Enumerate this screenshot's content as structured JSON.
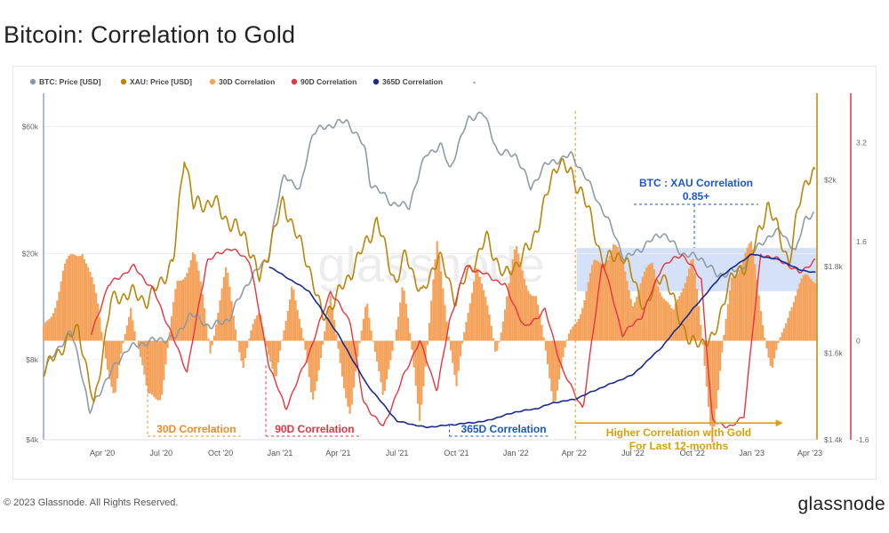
{
  "page": {
    "title": "Bitcoin: Correlation to Gold",
    "footer_copyright": "© 2023 Glassnode. All Rights Reserved.",
    "footer_logo": "glassnode",
    "watermark": "glassnode"
  },
  "colors": {
    "btc": "#8f9ba4",
    "xau": "#b8860b",
    "c30": "#f5a35c",
    "c90": "#e8343f",
    "c365": "#1a2a8c",
    "highlight": "#c7d6f7",
    "annotation_blue": "#1a56d6",
    "annotation_gold": "#d6a20a"
  },
  "chart_data": {
    "type": "line",
    "title": "Bitcoin: Correlation to Gold",
    "legend_position": "top-left",
    "legend": [
      {
        "label": "BTC: Price [USD]",
        "color": "#8f9ba4"
      },
      {
        "label": "XAU: Price [USD]",
        "color": "#b8860b"
      },
      {
        "label": "30D Correlation",
        "color": "#f5a35c"
      },
      {
        "label": "90D Correlation",
        "color": "#e8343f"
      },
      {
        "label": "365D Correlation",
        "color": "#1a2a8c"
      },
      {
        "label": "-",
        "color": "#ffffff"
      }
    ],
    "x_ticks": [
      "Apr '20",
      "Jul '20",
      "Oct '20",
      "Jan '21",
      "Apr '21",
      "Jul '21",
      "Oct '21",
      "Jan '22",
      "Apr '22",
      "Jul '22",
      "Oct '22",
      "Jan '23",
      "Apr '23"
    ],
    "axes": {
      "btc": {
        "scale": "log",
        "range": [
          4000,
          80000
        ],
        "ticks": [
          "$4k",
          "$8k",
          "$20k",
          "$60k"
        ],
        "tick_values": [
          4000,
          8000,
          20000,
          60000
        ]
      },
      "xau": {
        "scale": "linear",
        "range": [
          1400,
          2200
        ],
        "ticks": [
          "$1.4k",
          "$1.6k",
          "$1.8k",
          "$2k"
        ],
        "tick_values": [
          1400,
          1600,
          1800,
          2000
        ]
      },
      "corr": {
        "scale": "linear",
        "range": [
          -1.6,
          4.0
        ],
        "ticks": [
          "-1.6",
          "0",
          "1.6",
          "3.2"
        ],
        "tick_values": [
          -1.6,
          0,
          1.6,
          3.2
        ]
      }
    },
    "grid": true,
    "series": [
      {
        "name": "BTC: Price [USD]",
        "axis": "btc",
        "points": [
          [
            "2020-01-01",
            7200
          ],
          [
            "2020-02-12",
            10200
          ],
          [
            "2020-03-12",
            5000
          ],
          [
            "2020-04-10",
            6900
          ],
          [
            "2020-05-10",
            8800
          ],
          [
            "2020-06-15",
            9400
          ],
          [
            "2020-07-25",
            9700
          ],
          [
            "2020-08-15",
            11900
          ],
          [
            "2020-09-15",
            10600
          ],
          [
            "2020-10-15",
            11400
          ],
          [
            "2020-11-15",
            16000
          ],
          [
            "2020-12-15",
            19400
          ],
          [
            "2021-01-08",
            40000
          ],
          [
            "2021-02-01",
            34000
          ],
          [
            "2021-02-21",
            57000
          ],
          [
            "2021-03-13",
            60000
          ],
          [
            "2021-04-14",
            63000
          ],
          [
            "2021-05-12",
            50000
          ],
          [
            "2021-05-20",
            37000
          ],
          [
            "2021-06-22",
            31000
          ],
          [
            "2021-07-20",
            30000
          ],
          [
            "2021-08-15",
            47000
          ],
          [
            "2021-09-07",
            51000
          ],
          [
            "2021-09-21",
            41000
          ],
          [
            "2021-10-20",
            64000
          ],
          [
            "2021-11-10",
            68000
          ],
          [
            "2021-12-04",
            48000
          ],
          [
            "2022-01-01",
            47000
          ],
          [
            "2022-01-24",
            35000
          ],
          [
            "2022-02-15",
            43000
          ],
          [
            "2022-03-28",
            47000
          ],
          [
            "2022-05-09",
            31000
          ],
          [
            "2022-06-18",
            19000
          ],
          [
            "2022-07-15",
            21000
          ],
          [
            "2022-08-15",
            24000
          ],
          [
            "2022-09-15",
            20000
          ],
          [
            "2022-10-15",
            19200
          ],
          [
            "2022-11-09",
            16500
          ],
          [
            "2022-12-15",
            17500
          ],
          [
            "2023-01-20",
            22500
          ],
          [
            "2023-02-15",
            24500
          ],
          [
            "2023-03-10",
            20000
          ],
          [
            "2023-03-25",
            27500
          ],
          [
            "2023-04-08",
            28000
          ]
        ]
      },
      {
        "name": "XAU: Price [USD]",
        "axis": "xau",
        "points": [
          [
            "2020-01-01",
            1560
          ],
          [
            "2020-02-24",
            1660
          ],
          [
            "2020-03-19",
            1475
          ],
          [
            "2020-04-14",
            1720
          ],
          [
            "2020-05-15",
            1740
          ],
          [
            "2020-06-10",
            1720
          ],
          [
            "2020-07-20",
            1810
          ],
          [
            "2020-08-06",
            2065
          ],
          [
            "2020-08-20",
            1940
          ],
          [
            "2020-09-20",
            1950
          ],
          [
            "2020-10-15",
            1900
          ],
          [
            "2020-11-09",
            1870
          ],
          [
            "2020-11-30",
            1770
          ],
          [
            "2021-01-06",
            1950
          ],
          [
            "2021-02-15",
            1800
          ],
          [
            "2021-03-08",
            1680
          ],
          [
            "2021-04-15",
            1770
          ],
          [
            "2021-05-31",
            1905
          ],
          [
            "2021-06-29",
            1760
          ],
          [
            "2021-07-15",
            1830
          ],
          [
            "2021-08-09",
            1730
          ],
          [
            "2021-09-03",
            1830
          ],
          [
            "2021-09-29",
            1725
          ],
          [
            "2021-11-16",
            1865
          ],
          [
            "2021-12-15",
            1775
          ],
          [
            "2022-01-25",
            1850
          ],
          [
            "2022-03-08",
            2050
          ],
          [
            "2022-04-15",
            1970
          ],
          [
            "2022-05-16",
            1810
          ],
          [
            "2022-06-15",
            1830
          ],
          [
            "2022-07-21",
            1700
          ],
          [
            "2022-08-15",
            1790
          ],
          [
            "2022-09-28",
            1620
          ],
          [
            "2022-10-20",
            1630
          ],
          [
            "2022-11-03",
            1630
          ],
          [
            "2022-11-25",
            1760
          ],
          [
            "2022-12-31",
            1820
          ],
          [
            "2023-01-26",
            1945
          ],
          [
            "2023-02-28",
            1810
          ],
          [
            "2023-03-20",
            1980
          ],
          [
            "2023-04-04",
            2020
          ],
          [
            "2023-04-10",
            2000
          ]
        ]
      },
      {
        "name": "30D Correlation",
        "axis": "corr",
        "points": [
          [
            "2020-01-01",
            0.2
          ],
          [
            "2020-02-01",
            1.2
          ],
          [
            "2020-03-01",
            1.4
          ],
          [
            "2020-03-25",
            0.5
          ],
          [
            "2020-04-20",
            -0.8
          ],
          [
            "2020-05-15",
            0.6
          ],
          [
            "2020-06-10",
            -1.1
          ],
          [
            "2020-07-01",
            -0.8
          ],
          [
            "2020-07-25",
            1.0
          ],
          [
            "2020-08-20",
            1.4
          ],
          [
            "2020-09-15",
            -0.2
          ],
          [
            "2020-10-10",
            1.2
          ],
          [
            "2020-11-05",
            -0.3
          ],
          [
            "2020-12-01",
            0.4
          ],
          [
            "2020-12-25",
            -0.8
          ],
          [
            "2021-01-20",
            1.2
          ],
          [
            "2021-02-20",
            -1.0
          ],
          [
            "2021-03-20",
            0.5
          ],
          [
            "2021-04-20",
            -1.1
          ],
          [
            "2021-05-15",
            0.8
          ],
          [
            "2021-06-10",
            -1.2
          ],
          [
            "2021-07-10",
            1.0
          ],
          [
            "2021-08-05",
            -1.1
          ],
          [
            "2021-09-01",
            1.4
          ],
          [
            "2021-10-01",
            -0.8
          ],
          [
            "2021-11-01",
            1.5
          ],
          [
            "2021-12-01",
            -0.3
          ],
          [
            "2022-01-01",
            1.4
          ],
          [
            "2022-02-01",
            0.8
          ],
          [
            "2022-03-01",
            -1.0
          ],
          [
            "2022-04-01",
            0.2
          ],
          [
            "2022-05-01",
            1.3
          ],
          [
            "2022-06-01",
            1.5
          ],
          [
            "2022-07-01",
            0.6
          ],
          [
            "2022-08-01",
            1.4
          ],
          [
            "2022-09-01",
            0.3
          ],
          [
            "2022-10-01",
            1.3
          ],
          [
            "2022-11-01",
            -1.4
          ],
          [
            "2022-12-01",
            1.0
          ],
          [
            "2023-01-01",
            1.4
          ],
          [
            "2023-02-01",
            -0.4
          ],
          [
            "2023-03-01",
            0.6
          ],
          [
            "2023-04-10",
            1.0
          ]
        ]
      },
      {
        "name": "90D Correlation",
        "axis": "corr",
        "points": [
          [
            "2020-03-15",
            0.1
          ],
          [
            "2020-04-10",
            0.9
          ],
          [
            "2020-05-20",
            1.2
          ],
          [
            "2020-06-20",
            0.8
          ],
          [
            "2020-08-10",
            -0.5
          ],
          [
            "2020-09-10",
            1.3
          ],
          [
            "2020-10-15",
            1.5
          ],
          [
            "2020-11-15",
            1.3
          ],
          [
            "2020-12-15",
            -0.4
          ],
          [
            "2021-01-10",
            -1.1
          ],
          [
            "2021-02-15",
            -0.2
          ],
          [
            "2021-03-20",
            0.8
          ],
          [
            "2021-04-20",
            0.3
          ],
          [
            "2021-05-10",
            -1.0
          ],
          [
            "2021-06-10",
            -1.4
          ],
          [
            "2021-07-10",
            -0.6
          ],
          [
            "2021-08-05",
            0.0
          ],
          [
            "2021-09-01",
            -0.8
          ],
          [
            "2021-09-20",
            0.3
          ],
          [
            "2021-10-15",
            1.2
          ],
          [
            "2021-11-10",
            1.1
          ],
          [
            "2021-12-15",
            0.9
          ],
          [
            "2022-01-15",
            0.2
          ],
          [
            "2022-02-15",
            0.5
          ],
          [
            "2022-03-15",
            -0.5
          ],
          [
            "2022-04-15",
            -1.1
          ],
          [
            "2022-05-15",
            1.3
          ],
          [
            "2022-06-15",
            0.1
          ],
          [
            "2022-07-15",
            0.4
          ],
          [
            "2022-08-15",
            1.2
          ],
          [
            "2022-09-15",
            1.4
          ],
          [
            "2022-10-15",
            1.0
          ],
          [
            "2022-11-01",
            -1.3
          ],
          [
            "2022-12-01",
            -1.4
          ],
          [
            "2022-12-20",
            -1.2
          ],
          [
            "2023-01-15",
            1.4
          ],
          [
            "2023-02-15",
            1.3
          ],
          [
            "2023-03-15",
            1.1
          ],
          [
            "2023-04-10",
            1.3
          ]
        ]
      },
      {
        "name": "365D Correlation",
        "axis": "corr",
        "points": [
          [
            "2020-12-15",
            1.2
          ],
          [
            "2021-02-15",
            0.8
          ],
          [
            "2021-04-01",
            0.1
          ],
          [
            "2021-05-15",
            -0.7
          ],
          [
            "2021-07-01",
            -1.3
          ],
          [
            "2021-08-15",
            -1.4
          ],
          [
            "2021-10-01",
            -1.35
          ],
          [
            "2021-11-15",
            -1.3
          ],
          [
            "2022-01-01",
            -1.15
          ],
          [
            "2022-02-01",
            -1.1
          ],
          [
            "2022-03-01",
            -1.0
          ],
          [
            "2022-04-01",
            -0.95
          ],
          [
            "2022-05-15",
            -0.75
          ],
          [
            "2022-07-01",
            -0.55
          ],
          [
            "2022-08-15",
            -0.1
          ],
          [
            "2022-10-01",
            0.5
          ],
          [
            "2022-11-15",
            1.05
          ],
          [
            "2023-01-01",
            1.4
          ],
          [
            "2023-02-15",
            1.3
          ],
          [
            "2023-03-15",
            1.15
          ],
          [
            "2023-04-10",
            1.1
          ]
        ]
      }
    ],
    "annotations": {
      "label_30d": "30D Correlation",
      "label_90d": "90D Correlation",
      "label_365d": "365D Correlation",
      "btc_xau_line1": "BTC : XAU Correlation",
      "btc_xau_line2": "0.85+",
      "higher_line1": "Higher Correlation with Gold",
      "higher_line2": "For Last 12-months"
    }
  }
}
